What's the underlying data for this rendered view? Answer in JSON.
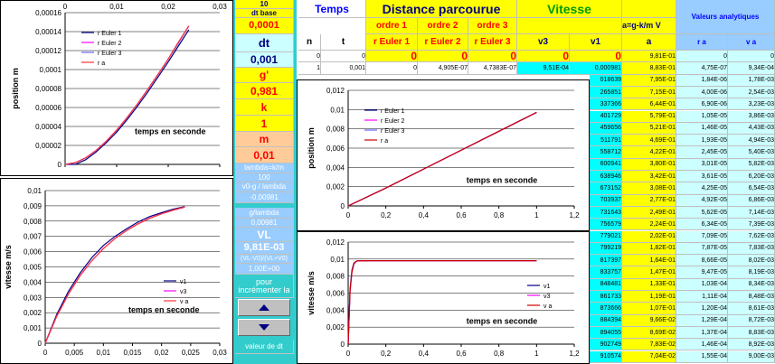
{
  "panel": [
    "10",
    "dt base",
    "0,0001",
    "dt",
    "0,001",
    "g'",
    "0,981",
    "k",
    "1",
    "m",
    "0,01",
    "lambda=k/m",
    "100",
    "v0-g / lambda",
    "-0,00981",
    "g/lambda",
    "0,00981",
    "VL",
    "9,81E-03",
    "(VL-V0)/(VL+V0)",
    "1,00E+00",
    "pour incrémenter la",
    "valeur de dt"
  ],
  "table": {
    "group_headers": [
      "Temps",
      "Distance parcourue",
      "Vitesse",
      "a=g-k/m V",
      "Valeurs analytiques"
    ],
    "order_labels": [
      "ordre 1",
      "ordre 2",
      "ordre 3"
    ],
    "columns": [
      "n",
      "t",
      "r Euler 1",
      "r Euler 2",
      "r Euler 3",
      "v3",
      "v1",
      "a",
      "r a",
      "v a"
    ],
    "rows": [
      [
        "0",
        "0",
        "0",
        "0",
        "0",
        "0",
        "0",
        "9,81E-01",
        "0",
        "0"
      ],
      [
        "1",
        "0,001",
        "0",
        "4,905E-07",
        "4,7383E-07",
        "9,51E-04",
        "0,000981",
        "8,83E-01",
        "4,75E-07",
        "9,34E-04"
      ]
    ],
    "partial_rows": [
      [
        "018639",
        "7,95E-01",
        "1,84E-06",
        "1,78E-03"
      ],
      [
        "265851",
        "7,15E-01",
        "4,00E-06",
        "2,54E-03"
      ],
      [
        "337366",
        "6,44E-01",
        "6,90E-06",
        "3,23E-03"
      ],
      [
        "401729",
        "5,79E-01",
        "1,05E-05",
        "3,86E-03"
      ],
      [
        "459656",
        "5,21E-01",
        "1,46E-05",
        "4,43E-03"
      ],
      [
        "511791",
        "4,69E-01",
        "1,93E-05",
        "4,94E-03"
      ],
      [
        "558712",
        "4,22E-01",
        "2,45E-05",
        "5,40E-03"
      ],
      [
        "600941",
        "3,80E-01",
        "3,01E-05",
        "5,82E-03"
      ],
      [
        "638946",
        "3,42E-01",
        "3,61E-05",
        "6,20E-03"
      ],
      [
        "673152",
        "3,08E-01",
        "4,25E-05",
        "6,54E-03"
      ],
      [
        "703937",
        "2,77E-01",
        "4,92E-05",
        "6,86E-03"
      ],
      [
        "731643",
        "2,49E-01",
        "5,62E-05",
        "7,14E-03"
      ],
      [
        "756579",
        "2,24E-01",
        "6,34E-05",
        "7,39E-03"
      ],
      [
        "779021",
        "2,02E-01",
        "7,09E-05",
        "7,62E-03"
      ],
      [
        "799219",
        "1,82E-01",
        "7,87E-05",
        "7,83E-03"
      ],
      [
        "817397",
        "1,64E-01",
        "8,66E-05",
        "8,02E-03"
      ],
      [
        "833757",
        "1,47E-01",
        "9,47E-05",
        "8,19E-03"
      ],
      [
        "848481",
        "1,33E-01",
        "1,03E-04",
        "8,34E-03"
      ],
      [
        "861733",
        "1,19E-01",
        "1,11E-04",
        "8,48E-03"
      ],
      [
        "873666",
        "1,07E-01",
        "1,20E-04",
        "8,61E-03"
      ],
      [
        "884394",
        "9,66E-02",
        "1,29E-04",
        "8,72E-03"
      ],
      [
        "894055",
        "8,69E-02",
        "1,37E-04",
        "8,83E-03"
      ],
      [
        "902749",
        "7,83E-02",
        "1,46E-04",
        "8,92E-03"
      ],
      [
        "910574",
        "7,04E-02",
        "1,55E-04",
        "9,00E-03"
      ]
    ]
  },
  "chart_data": [
    {
      "type": "line",
      "x_label": "temps en seconde",
      "y_label": "position m",
      "grid": true,
      "legend": "upper left",
      "xticks_position": "top",
      "x": [
        0,
        0.002,
        0.004,
        0.006,
        0.008,
        0.01,
        0.012,
        0.014,
        0.016,
        0.018,
        0.02,
        0.022,
        0.024
      ],
      "series": [
        {
          "name": "r Euler 1",
          "color": "#000080",
          "values": [
            0,
            0,
            4.9e-06,
            1.3e-05,
            2.3e-05,
            3.4e-05,
            4.7e-05,
            6.1e-05,
            7.6e-05,
            9.2e-05,
            0.000108,
            0.000125,
            0.000142
          ]
        },
        {
          "name": "r Euler 2",
          "color": "#ff00ff",
          "values": [
            0,
            1.9e-06,
            7e-06,
            1.47e-05,
            2.46e-05,
            3.62e-05,
            4.93e-05,
            6.35e-05,
            7.88e-05,
            9.48e-05,
            0.000111,
            0.000129,
            0.000146
          ]
        },
        {
          "name": "r Euler 3",
          "color": "#6666ff",
          "values": [
            0,
            1.8e-06,
            6.8e-06,
            1.45e-05,
            2.44e-05,
            3.6e-05,
            4.9e-05,
            6.32e-05,
            7.85e-05,
            9.45e-05,
            0.000111,
            0.000128,
            0.000146
          ]
        },
        {
          "name": "r a",
          "color": "#ff3333",
          "values": [
            0,
            1.84e-06,
            6.9e-06,
            1.46e-05,
            2.45e-05,
            3.61e-05,
            4.92e-05,
            6.34e-05,
            7.87e-05,
            9.47e-05,
            0.000111,
            0.000129,
            0.000146
          ]
        }
      ],
      "xlim": [
        0,
        0.03
      ],
      "xticks": [
        0,
        {
          "value": 0.01,
          "label": "0,01"
        },
        {
          "value": 0.02,
          "label": "0,02"
        },
        {
          "value": 0.03,
          "label": "0,03"
        }
      ],
      "ylim": [
        0,
        0.00016
      ],
      "yticks": [
        0,
        {
          "value": 2e-05,
          "label": "0,00002"
        },
        {
          "value": 4e-05,
          "label": "0,00004"
        },
        {
          "value": 6e-05,
          "label": "0,00006"
        },
        {
          "value": 8e-05,
          "label": "0,00008"
        },
        {
          "value": 0.0001,
          "label": "0,0001"
        },
        {
          "value": 0.00012,
          "label": "0,00012"
        },
        {
          "value": 0.00014,
          "label": "0,00014"
        },
        {
          "value": 0.00016,
          "label": "0,00016"
        }
      ]
    },
    {
      "type": "line",
      "x_label": "temps en seconde",
      "y_label": "vitesse m/s",
      "grid": true,
      "legend": "lower right",
      "xticks_position": "bottom",
      "x": [
        0,
        0.002,
        0.004,
        0.006,
        0.008,
        0.01,
        0.012,
        0.014,
        0.016,
        0.018,
        0.02,
        0.022,
        0.024
      ],
      "series": [
        {
          "name": "v1",
          "color": "#000080",
          "values": [
            0,
            0.0019,
            0.0034,
            0.0046,
            0.0056,
            0.0064,
            0.007,
            0.0075,
            0.00795,
            0.0083,
            0.00855,
            0.00878,
            0.00895
          ]
        },
        {
          "name": "v3",
          "color": "#ff00ff",
          "values": [
            0,
            0.00178,
            0.00323,
            0.00443,
            0.0054,
            0.0062,
            0.00686,
            0.00739,
            0.00783,
            0.00819,
            0.00848,
            0.00872,
            0.00892
          ]
        },
        {
          "name": "v a",
          "color": "#ff3333",
          "values": [
            0,
            0.00178,
            0.00323,
            0.00443,
            0.0054,
            0.0062,
            0.00686,
            0.00739,
            0.00783,
            0.00819,
            0.00848,
            0.00872,
            0.00892
          ]
        }
      ],
      "xlim": [
        0,
        0.03
      ],
      "xticks": [
        0,
        {
          "value": 0.005,
          "label": "0,005"
        },
        {
          "value": 0.01,
          "label": "0,01"
        },
        {
          "value": 0.015,
          "label": "0,015"
        },
        {
          "value": 0.02,
          "label": "0,02"
        },
        {
          "value": 0.025,
          "label": "0,025"
        },
        {
          "value": 0.03,
          "label": "0,03"
        }
      ],
      "ylim": [
        0,
        0.01
      ],
      "yticks": [
        0,
        {
          "value": 0.001,
          "label": "0,001"
        },
        {
          "value": 0.002,
          "label": "0,002"
        },
        {
          "value": 0.003,
          "label": "0,003"
        },
        {
          "value": 0.004,
          "label": "0,004"
        },
        {
          "value": 0.005,
          "label": "0,005"
        },
        {
          "value": 0.006,
          "label": "0,006"
        },
        {
          "value": 0.007,
          "label": "0,007"
        },
        {
          "value": 0.008,
          "label": "0,008"
        },
        {
          "value": 0.009,
          "label": "0,009"
        },
        {
          "value": 0.01,
          "label": "0,01"
        }
      ]
    },
    {
      "type": "line",
      "x_label": "temps en seconde",
      "y_label": "position m",
      "grid": true,
      "legend": "upper left",
      "xticks_position": "bottom",
      "x": [
        0,
        0.2,
        0.4,
        0.6,
        0.8,
        1
      ],
      "series": [
        {
          "name": "r Euler 1",
          "color": "#000080",
          "values": [
            0,
            0.00186,
            0.00382,
            0.00578,
            0.00774,
            0.0097
          ]
        },
        {
          "name": "r Euler 2",
          "color": "#ff00ff",
          "values": [
            0,
            0.00186,
            0.00382,
            0.00579,
            0.00775,
            0.00971
          ]
        },
        {
          "name": "r Euler 3",
          "color": "#6666ff",
          "values": [
            0,
            0.00186,
            0.00382,
            0.00579,
            0.00775,
            0.00971
          ]
        },
        {
          "name": "r a",
          "color": "#cc0000",
          "values": [
            0,
            0.00186,
            0.00382,
            0.00579,
            0.00775,
            0.00971
          ]
        }
      ],
      "xlim": [
        0,
        1.2
      ],
      "xticks": [
        0,
        {
          "value": 0.2,
          "label": "0,2"
        },
        {
          "value": 0.4,
          "label": "0,4"
        },
        {
          "value": 0.6,
          "label": "0,6"
        },
        {
          "value": 0.8,
          "label": "0,8"
        },
        1,
        {
          "value": 1.2,
          "label": "1,2"
        }
      ],
      "ylim": [
        0,
        0.012
      ],
      "yticks": [
        0,
        {
          "value": 0.002,
          "label": "0,002"
        },
        {
          "value": 0.004,
          "label": "0,004"
        },
        {
          "value": 0.006,
          "label": "0,006"
        },
        {
          "value": 0.008,
          "label": "0,008"
        },
        {
          "value": 0.01,
          "label": "0,01"
        },
        {
          "value": 0.012,
          "label": "0,012"
        }
      ]
    },
    {
      "type": "line",
      "x_label": "temps en seconde",
      "y_label": "vitesse m/s",
      "grid": true,
      "legend": "right",
      "xticks_position": "bottom",
      "x": [
        0,
        0.01,
        0.02,
        0.03,
        0.04,
        0.05,
        0.1,
        0.5,
        1
      ],
      "series": [
        {
          "name": "v1",
          "color": "#000080",
          "values": [
            0,
            0.0064,
            0.0087,
            0.0095,
            0.0097,
            0.0098,
            0.00981,
            0.00981,
            0.00981
          ]
        },
        {
          "name": "v3",
          "color": "#ff00ff",
          "values": [
            0,
            0.0062,
            0.0085,
            0.0094,
            0.0097,
            0.0098,
            0.00981,
            0.00981,
            0.00981
          ]
        },
        {
          "name": "v a",
          "color": "#cc0000",
          "values": [
            0,
            0.0062,
            0.0085,
            0.0094,
            0.0097,
            0.0098,
            0.00981,
            0.00981,
            0.00981
          ]
        }
      ],
      "xlim": [
        0,
        1.2
      ],
      "xticks": [
        0,
        {
          "value": 0.2,
          "label": "0,2"
        },
        {
          "value": 0.4,
          "label": "0,4"
        },
        {
          "value": 0.6,
          "label": "0,6"
        },
        {
          "value": 0.8,
          "label": "0,8"
        },
        1,
        {
          "value": 1.2,
          "label": "1,2"
        }
      ],
      "ylim": [
        0,
        0.012
      ],
      "yticks": [
        0,
        {
          "value": 0.002,
          "label": "0,002"
        },
        {
          "value": 0.004,
          "label": "0,004"
        },
        {
          "value": 0.006,
          "label": "0,006"
        },
        {
          "value": 0.008,
          "label": "0,008"
        },
        {
          "value": 0.01,
          "label": "0,01"
        },
        {
          "value": 0.012,
          "label": "0,012"
        }
      ]
    }
  ]
}
